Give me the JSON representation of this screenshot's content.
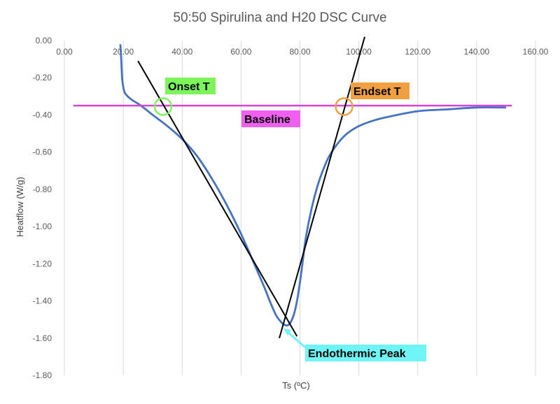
{
  "chart_data": {
    "type": "line",
    "title": "50:50 Spirulina and H20 DSC Curve",
    "xlabel": "Ts (ºC)",
    "ylabel": "Heatflow (W/g)",
    "xlim": [
      0,
      160
    ],
    "ylim": [
      -1.8,
      0
    ],
    "x_ticks": [
      "0.00",
      "20.00",
      "40.00",
      "60.00",
      "80.00",
      "100.00",
      "120.00",
      "140.00",
      "160.00"
    ],
    "y_ticks": [
      "0.00",
      "-0.20",
      "-0.40",
      "-0.60",
      "-0.80",
      "-1.00",
      "-1.20",
      "-1.40",
      "-1.60",
      "-1.80"
    ],
    "grid": "vertical",
    "series": [
      {
        "color": "#4472C4",
        "x": [
          19.0,
          19.3,
          19.6,
          20.0,
          20.5,
          21.5,
          23.0,
          26.0,
          30.0,
          35.0,
          40.0,
          45.0,
          50.0,
          55.0,
          60.0,
          65.0,
          68.0,
          70.0,
          72.0,
          74.0,
          75.0,
          76.0,
          77.0,
          78.0,
          79.0,
          80.0,
          81.0,
          82.0,
          84.0,
          86.0,
          88.0,
          90.0,
          93.0,
          96.0,
          100.0,
          105.0,
          110.0,
          120.0,
          130.0,
          140.0,
          150.0
        ],
        "y": [
          -0.02,
          -0.1,
          -0.2,
          -0.25,
          -0.28,
          -0.3,
          -0.32,
          -0.35,
          -0.4,
          -0.46,
          -0.53,
          -0.62,
          -0.74,
          -0.88,
          -1.04,
          -1.22,
          -1.33,
          -1.41,
          -1.48,
          -1.52,
          -1.53,
          -1.53,
          -1.51,
          -1.47,
          -1.4,
          -1.3,
          -1.18,
          -1.06,
          -0.9,
          -0.78,
          -0.69,
          -0.62,
          -0.55,
          -0.5,
          -0.46,
          -0.43,
          -0.41,
          -0.38,
          -0.37,
          -0.36,
          -0.36
        ]
      }
    ],
    "baseline": {
      "x": [
        3,
        152
      ],
      "y": [
        -0.35,
        -0.35
      ],
      "color": "#E040E0"
    },
    "tangent_lines": [
      {
        "x": [
          25,
          79
        ],
        "y": [
          -0.11,
          -1.59
        ],
        "color": "#000000"
      },
      {
        "x": [
          73,
          102
        ],
        "y": [
          -1.6,
          0.02
        ],
        "color": "#000000"
      }
    ],
    "annotations": [
      {
        "text": "Onset T",
        "bg": "#7CF55A"
      },
      {
        "text": "Endset T",
        "bg": "#F0A040"
      },
      {
        "text": "Baseline",
        "bg": "#F060F0"
      },
      {
        "text": "Endothermic Peak",
        "bg": "#6EF4F4"
      }
    ],
    "markers": [
      {
        "x": 33.5,
        "y": -0.355,
        "color": "#7CF55A"
      },
      {
        "x": 95,
        "y": -0.355,
        "color": "#F0A040"
      }
    ]
  }
}
